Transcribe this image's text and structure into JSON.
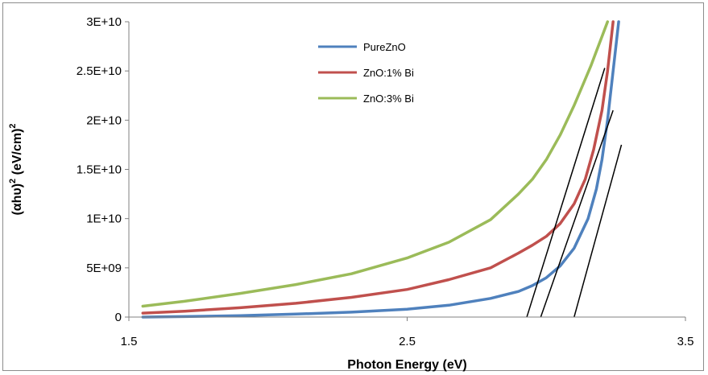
{
  "chart_data": {
    "type": "line",
    "title": "",
    "xlabel": "Photon Energy (eV)",
    "ylabel_parts": [
      "(αhυ)",
      "2",
      " (eV/cm)",
      "2"
    ],
    "xlim": [
      1.5,
      3.5
    ],
    "ylim": [
      0,
      30000000000
    ],
    "x_ticks": [
      1.5,
      2.5,
      3.5
    ],
    "x_tick_labels": [
      "1.5",
      "2.5",
      "3.5"
    ],
    "y_ticks": [
      0,
      5000000000,
      10000000000,
      15000000000,
      20000000000,
      25000000000,
      30000000000
    ],
    "y_tick_labels": [
      "0",
      "5E+09",
      "1E+10",
      "1.5E+10",
      "2E+10",
      "2.5E+10",
      "3E+10"
    ],
    "grid": false,
    "legend_position": "top-left",
    "series": [
      {
        "name": "PureZnO",
        "color": "#4f81bd",
        "x": [
          1.55,
          1.7,
          1.9,
          2.1,
          2.3,
          2.5,
          2.65,
          2.8,
          2.9,
          2.95,
          3.0,
          3.05,
          3.1,
          3.15,
          3.18,
          3.2,
          3.22,
          3.24,
          3.26
        ],
        "y": [
          0,
          50000000.0,
          150000000.0,
          300000000.0,
          500000000.0,
          800000000.0,
          1200000000.0,
          1900000000.0,
          2600000000.0,
          3200000000.0,
          4000000000.0,
          5200000000.0,
          7000000000.0,
          10000000000.0,
          13000000000.0,
          16000000000.0,
          20000000000.0,
          25000000000.0,
          30000000000.0
        ]
      },
      {
        "name": "ZnO:1% Bi",
        "color": "#c0504d",
        "x": [
          1.55,
          1.7,
          1.9,
          2.1,
          2.3,
          2.5,
          2.65,
          2.8,
          2.9,
          2.95,
          3.0,
          3.05,
          3.1,
          3.14,
          3.17,
          3.2,
          3.22,
          3.24
        ],
        "y": [
          400000000.0,
          600000000.0,
          950000000.0,
          1400000000.0,
          2000000000.0,
          2800000000.0,
          3800000000.0,
          5000000000.0,
          6500000000.0,
          7300000000.0,
          8200000000.0,
          9500000000.0,
          11500000000.0,
          14000000000.0,
          17000000000.0,
          21000000000.0,
          25000000000.0,
          30000000000.0
        ]
      },
      {
        "name": "ZnO:3% Bi",
        "color": "#9bbb59",
        "x": [
          1.55,
          1.7,
          1.9,
          2.1,
          2.3,
          2.5,
          2.65,
          2.8,
          2.9,
          2.95,
          3.0,
          3.05,
          3.1,
          3.13,
          3.16,
          3.18,
          3.2,
          3.22
        ],
        "y": [
          1100000000.0,
          1600000000.0,
          2400000000.0,
          3300000000.0,
          4400000000.0,
          6000000000.0,
          7600000000.0,
          9900000000.0,
          12500000000.0,
          14000000000.0,
          16000000000.0,
          18500000000.0,
          21500000000.0,
          23500000000.0,
          25500000000.0,
          27000000000.0,
          28500000000.0,
          30000000000.0
        ]
      }
    ],
    "tangent_lines": [
      {
        "x": [
          2.93,
          3.21
        ],
        "y": [
          0,
          25300000000
        ]
      },
      {
        "x": [
          2.98,
          3.24
        ],
        "y": [
          0,
          21000000000
        ]
      },
      {
        "x": [
          3.1,
          3.27
        ],
        "y": [
          0,
          17500000000
        ]
      }
    ]
  }
}
